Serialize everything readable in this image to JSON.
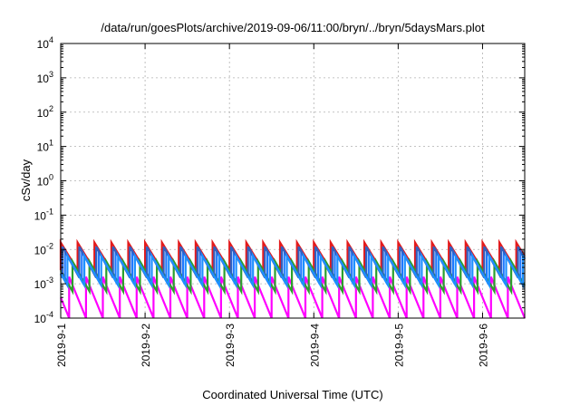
{
  "chart_data": {
    "type": "line",
    "title": "/data/run/goesPlots/archive/2019-09-06/11:00/bryn/../bryn/5daysMars.plot",
    "xlabel": "Coordinated Universal Time (UTC)",
    "ylabel": "cSv/day",
    "y_scale": "log",
    "ylim": [
      0.0001,
      10000
    ],
    "xlim": [
      "2019-09-01",
      "2019-09-06 12:00"
    ],
    "grid": true,
    "x_ticks": [
      "2019-9-1",
      "2019-9-2",
      "2019-9-3",
      "2019-9-4",
      "2019-9-5",
      "2019-9-6"
    ],
    "y_ticks": [
      {
        "base": "10",
        "exp": "-4"
      },
      {
        "base": "10",
        "exp": "-3"
      },
      {
        "base": "10",
        "exp": "-2"
      },
      {
        "base": "10",
        "exp": "-1"
      },
      {
        "base": "10",
        "exp": "0"
      },
      {
        "base": "10",
        "exp": "1"
      },
      {
        "base": "10",
        "exp": "2"
      },
      {
        "base": "10",
        "exp": "3"
      },
      {
        "base": "10",
        "exp": "4"
      }
    ],
    "sawtooth_period_days": 0.2,
    "series": [
      {
        "color": "#e31a1c",
        "peak": 0.016,
        "trough": 0.0025,
        "phase": 0.0
      },
      {
        "color": "#ff00ff",
        "peak": 0.0016,
        "trough": 0.0001,
        "phase": 0.1
      },
      {
        "color": "#2ca02c",
        "peak": 0.0045,
        "trough": 0.0006,
        "phase": 0.14
      },
      {
        "color": "#1f78ff",
        "peak": 0.009,
        "trough": 0.0012,
        "phase": 0.05
      },
      {
        "color": "#3060c0",
        "peak": 0.012,
        "trough": 0.0015,
        "phase": 0.02
      },
      {
        "color": "#1e90ff",
        "peak": 0.0065,
        "trough": 0.0009,
        "phase": 0.08
      }
    ]
  }
}
